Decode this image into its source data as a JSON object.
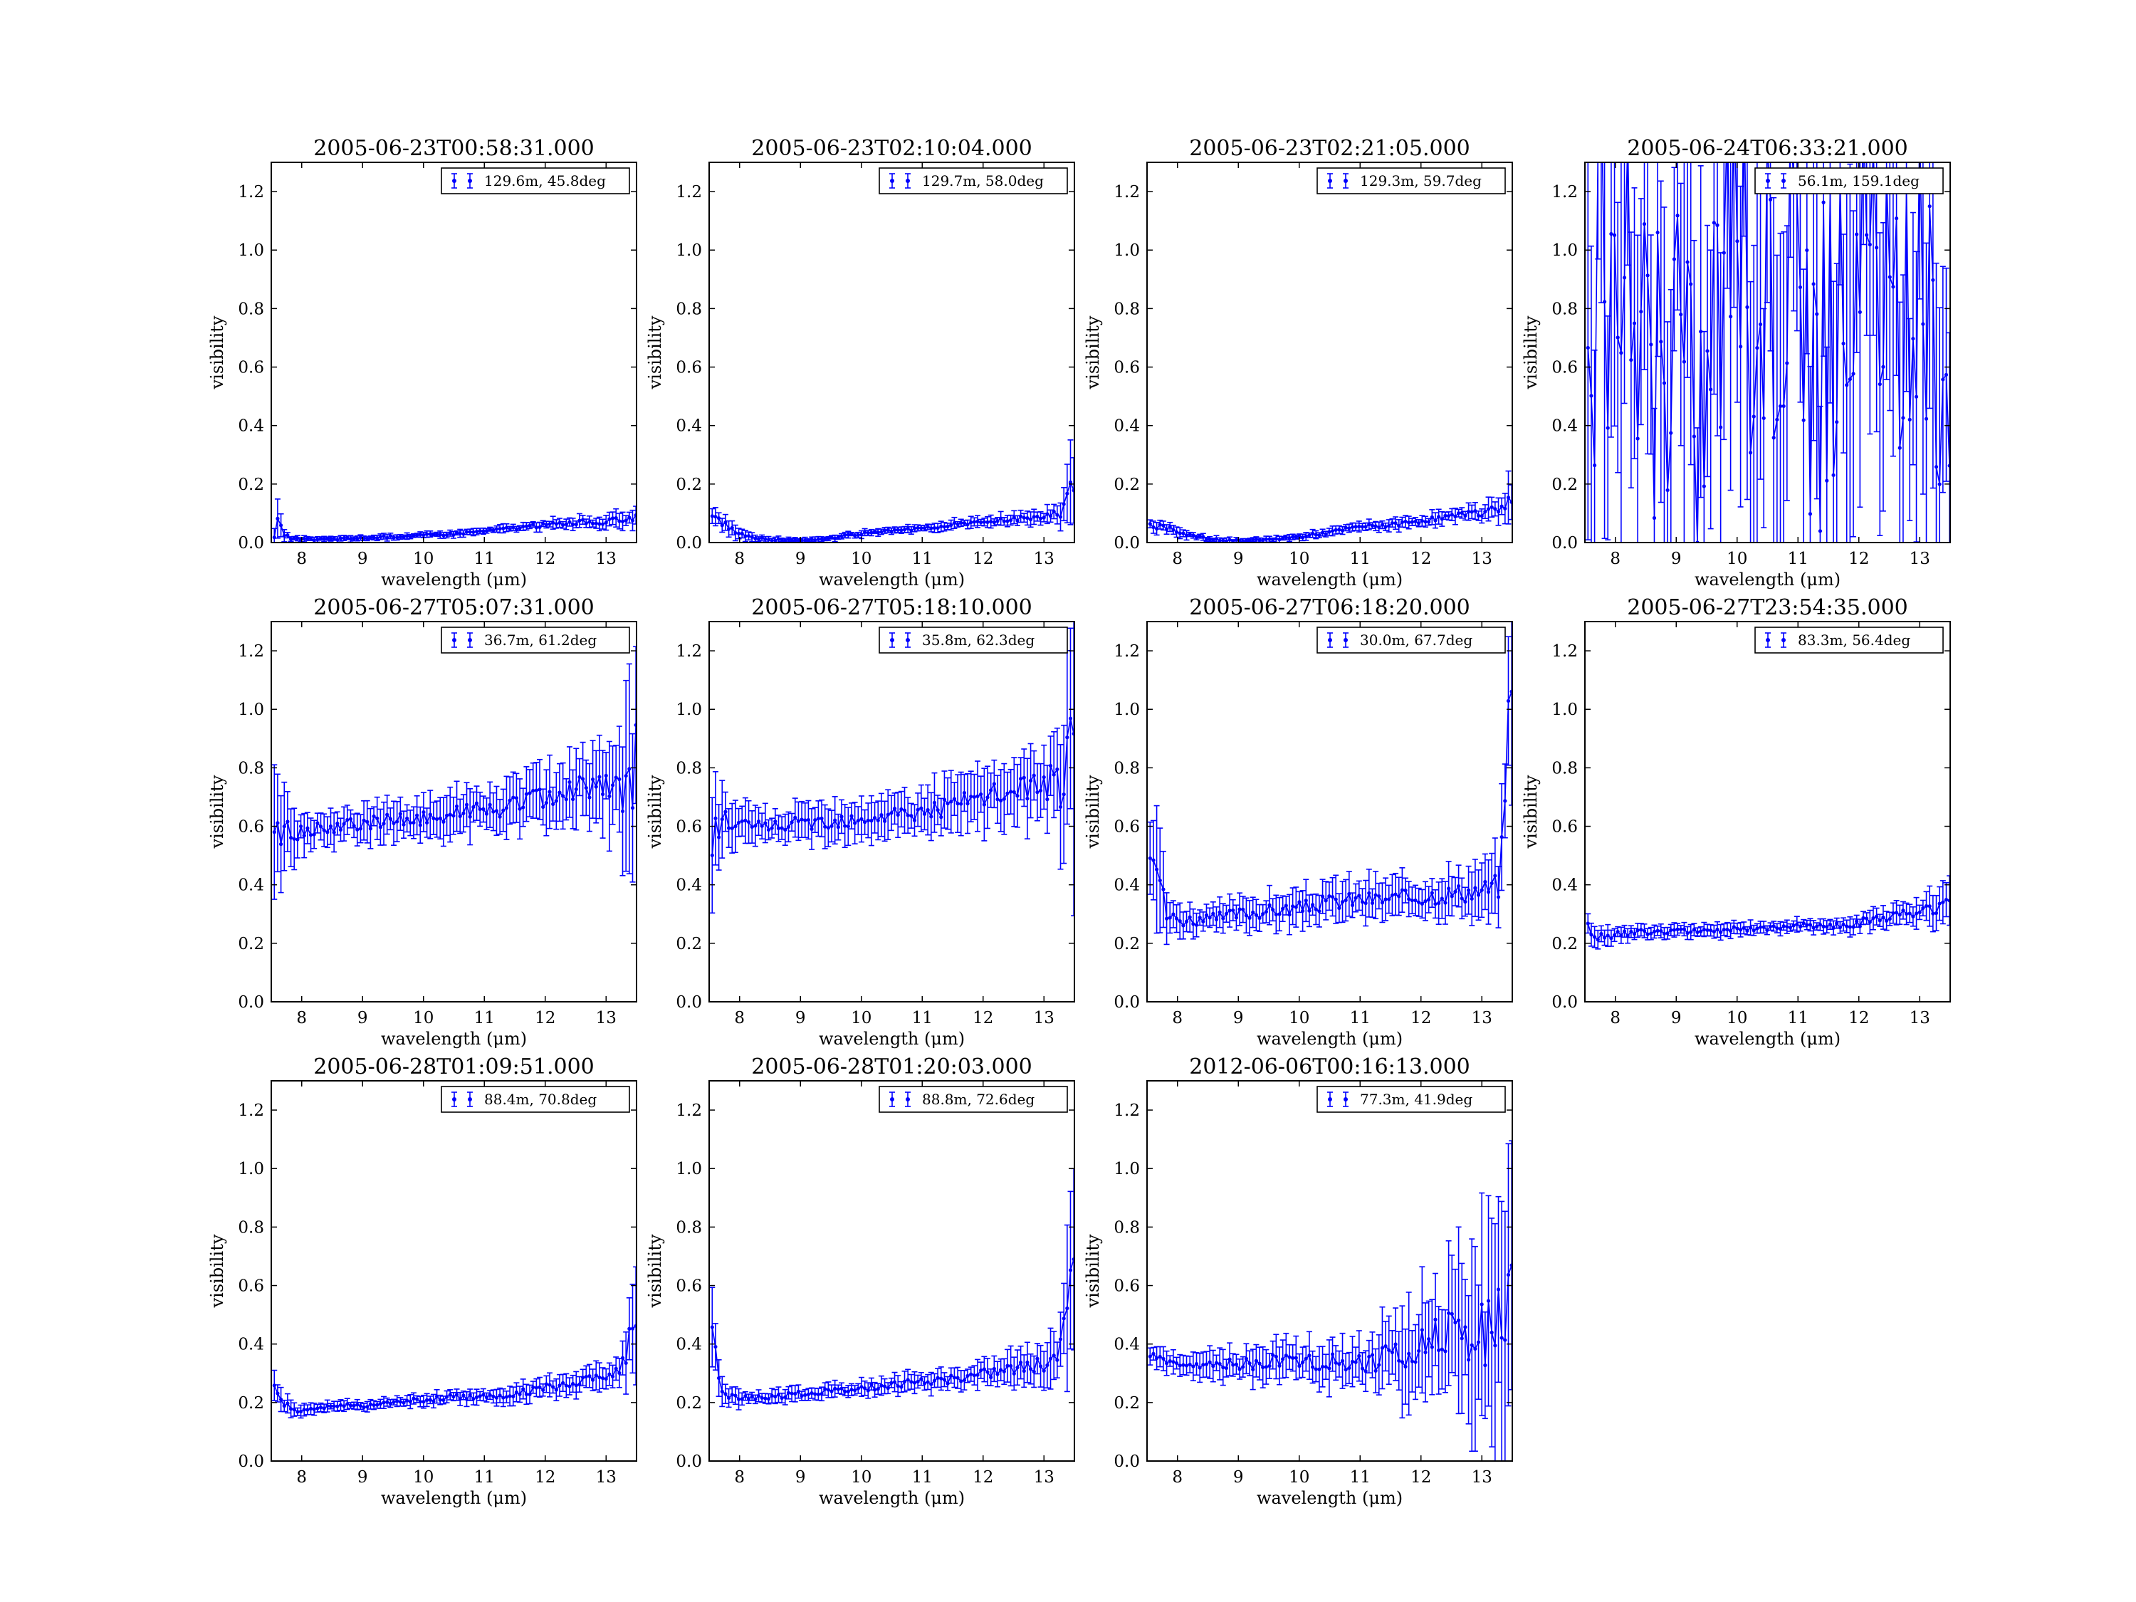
{
  "figure": {
    "panel_count": 11,
    "series_color": "#0000ff"
  },
  "chart_data": [
    {
      "type": "scatter",
      "title": "2005-06-23T00:58:31.000",
      "xlabel": "wavelength (μm)",
      "ylabel": "visibility",
      "xlim": [
        7.5,
        13.5
      ],
      "ylim": [
        0,
        1.3
      ],
      "xticks": [
        8,
        9,
        10,
        11,
        12,
        13
      ],
      "yticks": [
        0.0,
        0.2,
        0.4,
        0.6,
        0.8,
        1.0,
        1.2
      ],
      "legend_position": "top-right",
      "errorbars": true,
      "series": [
        {
          "name": "129.6m, 45.8deg",
          "x": [
            7.55,
            7.6,
            7.65,
            7.7,
            7.8,
            8.0,
            8.5,
            9.0,
            9.5,
            10.0,
            10.5,
            11.0,
            11.5,
            12.0,
            12.5,
            13.0,
            13.3,
            13.5
          ],
          "y": [
            0.03,
            0.07,
            0.05,
            0.03,
            0.015,
            0.01,
            0.012,
            0.015,
            0.02,
            0.025,
            0.03,
            0.04,
            0.05,
            0.06,
            0.07,
            0.07,
            0.08,
            0.09
          ],
          "err": [
            0.03,
            0.06,
            0.04,
            0.02,
            0.01,
            0.008,
            0.008,
            0.008,
            0.008,
            0.008,
            0.01,
            0.01,
            0.012,
            0.015,
            0.018,
            0.02,
            0.025,
            0.03
          ]
        }
      ]
    },
    {
      "type": "scatter",
      "title": "2005-06-23T02:10:04.000",
      "xlabel": "wavelength (μm)",
      "ylabel": "visibility",
      "xlim": [
        7.5,
        13.5
      ],
      "ylim": [
        0,
        1.3
      ],
      "xticks": [
        8,
        9,
        10,
        11,
        12,
        13
      ],
      "yticks": [
        0.0,
        0.2,
        0.4,
        0.6,
        0.8,
        1.0,
        1.2
      ],
      "legend_position": "top-right",
      "errorbars": true,
      "series": [
        {
          "name": "129.7m, 58.0deg",
          "x": [
            7.55,
            7.7,
            7.9,
            8.2,
            8.5,
            9.0,
            9.5,
            10.0,
            10.5,
            11.0,
            11.5,
            12.0,
            12.5,
            13.0,
            13.3,
            13.45
          ],
          "y": [
            0.08,
            0.07,
            0.04,
            0.02,
            0.01,
            0.008,
            0.015,
            0.03,
            0.04,
            0.05,
            0.06,
            0.07,
            0.08,
            0.09,
            0.1,
            0.18
          ],
          "err": [
            0.03,
            0.025,
            0.02,
            0.012,
            0.008,
            0.008,
            0.008,
            0.01,
            0.01,
            0.012,
            0.015,
            0.015,
            0.018,
            0.02,
            0.04,
            0.12
          ]
        }
      ]
    },
    {
      "type": "scatter",
      "title": "2005-06-23T02:21:05.000",
      "xlabel": "wavelength (μm)",
      "ylabel": "visibility",
      "xlim": [
        7.5,
        13.5
      ],
      "ylim": [
        0,
        1.3
      ],
      "xticks": [
        8,
        9,
        10,
        11,
        12,
        13
      ],
      "yticks": [
        0.0,
        0.2,
        0.4,
        0.6,
        0.8,
        1.0,
        1.2
      ],
      "legend_position": "top-right",
      "errorbars": true,
      "series": [
        {
          "name": "129.3m, 59.7deg",
          "x": [
            7.55,
            7.8,
            8.0,
            8.3,
            8.6,
            9.0,
            9.4,
            10.0,
            10.5,
            11.0,
            11.5,
            12.0,
            12.5,
            13.0,
            13.3,
            13.45
          ],
          "y": [
            0.06,
            0.05,
            0.04,
            0.02,
            0.01,
            0.005,
            0.008,
            0.02,
            0.035,
            0.055,
            0.06,
            0.075,
            0.09,
            0.1,
            0.12,
            0.15
          ],
          "err": [
            0.02,
            0.018,
            0.015,
            0.01,
            0.008,
            0.008,
            0.008,
            0.01,
            0.012,
            0.015,
            0.015,
            0.018,
            0.02,
            0.025,
            0.04,
            0.07
          ]
        }
      ]
    },
    {
      "type": "scatter",
      "title": "2005-06-24T06:33:21.000",
      "xlabel": "wavelength (μm)",
      "ylabel": "visibility",
      "xlim": [
        7.5,
        13.5
      ],
      "ylim": [
        0,
        1.3
      ],
      "xticks": [
        8,
        9,
        10,
        11,
        12,
        13
      ],
      "yticks": [
        0.0,
        0.2,
        0.4,
        0.6,
        0.8,
        1.0,
        1.2
      ],
      "legend_position": "top-right",
      "errorbars": true,
      "series": [
        {
          "name": "56.1m, 159.1deg",
          "x": [
            7.6,
            7.8,
            8.0,
            8.2,
            8.5,
            8.8,
            9.0,
            9.3,
            9.6,
            10.0,
            10.3,
            10.6,
            11.0,
            11.3,
            11.6,
            12.0,
            12.3,
            12.6,
            13.0,
            13.3
          ],
          "y": [
            0.6,
            1.2,
            0.4,
            0.9,
            0.7,
            0.5,
            1.0,
            0.3,
            0.8,
            1.3,
            0.6,
            0.9,
            1.1,
            0.5,
            0.8,
            1.0,
            0.9,
            0.6,
            0.9,
            0.7
          ],
          "err": [
            0.5,
            0.6,
            0.5,
            0.6,
            0.5,
            0.6,
            0.5,
            0.6,
            0.5,
            0.6,
            0.5,
            0.6,
            0.5,
            0.6,
            0.5,
            0.6,
            0.5,
            0.6,
            0.5,
            0.6
          ]
        }
      ]
    },
    {
      "type": "scatter",
      "title": "2005-06-27T05:07:31.000",
      "xlabel": "wavelength (μm)",
      "ylabel": "visibility",
      "xlim": [
        7.5,
        13.5
      ],
      "ylim": [
        0,
        1.3
      ],
      "xticks": [
        8,
        9,
        10,
        11,
        12,
        13
      ],
      "yticks": [
        0.0,
        0.2,
        0.4,
        0.6,
        0.8,
        1.0,
        1.2
      ],
      "legend_position": "top-right",
      "errorbars": true,
      "series": [
        {
          "name": "36.7m, 61.2deg",
          "x": [
            7.55,
            7.7,
            8.0,
            8.5,
            9.0,
            9.5,
            10.0,
            10.5,
            11.0,
            11.5,
            12.0,
            12.5,
            13.0,
            13.3,
            13.45
          ],
          "y": [
            0.6,
            0.58,
            0.58,
            0.6,
            0.61,
            0.62,
            0.63,
            0.65,
            0.65,
            0.67,
            0.7,
            0.72,
            0.74,
            0.72,
            0.78
          ],
          "err": [
            0.2,
            0.12,
            0.06,
            0.05,
            0.05,
            0.06,
            0.06,
            0.07,
            0.07,
            0.08,
            0.09,
            0.1,
            0.12,
            0.2,
            0.4
          ]
        }
      ]
    },
    {
      "type": "scatter",
      "title": "2005-06-27T05:18:10.000",
      "xlabel": "wavelength (μm)",
      "ylabel": "visibility",
      "xlim": [
        7.5,
        13.5
      ],
      "ylim": [
        0,
        1.3
      ],
      "xticks": [
        8,
        9,
        10,
        11,
        12,
        13
      ],
      "yticks": [
        0.0,
        0.2,
        0.4,
        0.6,
        0.8,
        1.0,
        1.2
      ],
      "legend_position": "top-right",
      "errorbars": true,
      "series": [
        {
          "name": "35.8m, 62.3deg",
          "x": [
            7.55,
            7.7,
            8.0,
            8.5,
            9.0,
            9.5,
            10.0,
            10.5,
            11.0,
            11.5,
            12.0,
            12.5,
            13.0,
            13.3,
            13.45
          ],
          "y": [
            0.55,
            0.62,
            0.6,
            0.6,
            0.61,
            0.62,
            0.63,
            0.64,
            0.65,
            0.67,
            0.7,
            0.72,
            0.75,
            0.74,
            0.8
          ],
          "err": [
            0.2,
            0.12,
            0.06,
            0.05,
            0.05,
            0.06,
            0.06,
            0.07,
            0.07,
            0.08,
            0.09,
            0.1,
            0.12,
            0.2,
            0.45
          ]
        }
      ]
    },
    {
      "type": "scatter",
      "title": "2005-06-27T06:18:20.000",
      "xlabel": "wavelength (μm)",
      "ylabel": "visibility",
      "xlim": [
        7.5,
        13.5
      ],
      "ylim": [
        0,
        1.3
      ],
      "xticks": [
        8,
        9,
        10,
        11,
        12,
        13
      ],
      "yticks": [
        0.0,
        0.2,
        0.4,
        0.6,
        0.8,
        1.0,
        1.2
      ],
      "legend_position": "top-right",
      "errorbars": true,
      "series": [
        {
          "name": "30.0m, 67.7deg",
          "x": [
            7.6,
            7.7,
            7.8,
            8.0,
            8.5,
            9.0,
            9.5,
            10.0,
            10.5,
            11.0,
            11.5,
            12.0,
            12.5,
            13.0,
            13.3,
            13.45
          ],
          "y": [
            0.55,
            0.45,
            0.3,
            0.28,
            0.28,
            0.3,
            0.31,
            0.32,
            0.34,
            0.35,
            0.35,
            0.36,
            0.37,
            0.38,
            0.4,
            1.03
          ],
          "err": [
            0.15,
            0.2,
            0.08,
            0.05,
            0.04,
            0.05,
            0.05,
            0.05,
            0.06,
            0.06,
            0.06,
            0.07,
            0.07,
            0.08,
            0.1,
            0.3
          ]
        }
      ]
    },
    {
      "type": "scatter",
      "title": "2005-06-27T23:54:35.000",
      "xlabel": "wavelength (μm)",
      "ylabel": "visibility",
      "xlim": [
        7.5,
        13.5
      ],
      "ylim": [
        0,
        1.3
      ],
      "xticks": [
        8,
        9,
        10,
        11,
        12,
        13
      ],
      "yticks": [
        0.0,
        0.2,
        0.4,
        0.6,
        0.8,
        1.0,
        1.2
      ],
      "legend_position": "top-right",
      "errorbars": true,
      "series": [
        {
          "name": "83.3m, 56.4deg",
          "x": [
            7.55,
            7.7,
            8.0,
            8.5,
            9.0,
            9.5,
            10.0,
            10.5,
            11.0,
            11.5,
            12.0,
            12.5,
            13.0,
            13.3,
            13.45
          ],
          "y": [
            0.25,
            0.22,
            0.23,
            0.24,
            0.24,
            0.24,
            0.25,
            0.25,
            0.26,
            0.26,
            0.27,
            0.29,
            0.31,
            0.33,
            0.35
          ],
          "err": [
            0.05,
            0.04,
            0.02,
            0.02,
            0.02,
            0.02,
            0.02,
            0.02,
            0.02,
            0.02,
            0.03,
            0.03,
            0.04,
            0.06,
            0.07
          ]
        }
      ]
    },
    {
      "type": "scatter",
      "title": "2005-06-28T01:09:51.000",
      "xlabel": "wavelength (μm)",
      "ylabel": "visibility",
      "xlim": [
        7.5,
        13.5
      ],
      "ylim": [
        0,
        1.3
      ],
      "xticks": [
        8,
        9,
        10,
        11,
        12,
        13
      ],
      "yticks": [
        0.0,
        0.2,
        0.4,
        0.6,
        0.8,
        1.0,
        1.2
      ],
      "legend_position": "top-right",
      "errorbars": true,
      "series": [
        {
          "name": "88.4m, 70.8deg",
          "x": [
            7.55,
            7.7,
            7.9,
            8.2,
            8.5,
            9.0,
            9.5,
            10.0,
            10.5,
            11.0,
            11.5,
            12.0,
            12.5,
            13.0,
            13.3,
            13.45
          ],
          "y": [
            0.25,
            0.2,
            0.17,
            0.18,
            0.19,
            0.19,
            0.2,
            0.21,
            0.22,
            0.22,
            0.23,
            0.25,
            0.27,
            0.29,
            0.33,
            0.5
          ],
          "err": [
            0.04,
            0.03,
            0.02,
            0.015,
            0.015,
            0.015,
            0.015,
            0.02,
            0.02,
            0.02,
            0.025,
            0.03,
            0.035,
            0.04,
            0.06,
            0.18
          ]
        }
      ]
    },
    {
      "type": "scatter",
      "title": "2005-06-28T01:20:03.000",
      "xlabel": "wavelength (μm)",
      "ylabel": "visibility",
      "xlim": [
        7.5,
        13.5
      ],
      "ylim": [
        0,
        1.3
      ],
      "xticks": [
        8,
        9,
        10,
        11,
        12,
        13
      ],
      "yticks": [
        0.0,
        0.2,
        0.4,
        0.6,
        0.8,
        1.0,
        1.2
      ],
      "legend_position": "top-right",
      "errorbars": true,
      "series": [
        {
          "name": "88.8m, 72.6deg",
          "x": [
            7.55,
            7.62,
            7.7,
            7.9,
            8.2,
            8.5,
            9.0,
            9.5,
            10.0,
            10.5,
            11.0,
            11.5,
            12.0,
            12.5,
            13.0,
            13.3,
            13.45
          ],
          "y": [
            0.45,
            0.35,
            0.22,
            0.22,
            0.22,
            0.22,
            0.23,
            0.24,
            0.25,
            0.26,
            0.27,
            0.28,
            0.3,
            0.32,
            0.33,
            0.38,
            0.8
          ],
          "err": [
            0.12,
            0.1,
            0.04,
            0.03,
            0.02,
            0.02,
            0.02,
            0.02,
            0.025,
            0.025,
            0.03,
            0.035,
            0.04,
            0.05,
            0.06,
            0.1,
            0.3
          ]
        }
      ]
    },
    {
      "type": "scatter",
      "title": "2012-06-06T00:16:13.000",
      "xlabel": "wavelength (μm)",
      "ylabel": "visibility",
      "xlim": [
        7.5,
        13.5
      ],
      "ylim": [
        0,
        1.3
      ],
      "xticks": [
        8,
        9,
        10,
        11,
        12,
        13
      ],
      "yticks": [
        0.0,
        0.2,
        0.4,
        0.6,
        0.8,
        1.0,
        1.2
      ],
      "legend_position": "top-right",
      "errorbars": true,
      "series": [
        {
          "name": "77.3m, 41.9deg",
          "x": [
            7.55,
            7.8,
            8.0,
            8.5,
            9.0,
            9.5,
            10.0,
            10.5,
            11.0,
            11.2,
            11.5,
            12.0,
            12.5,
            13.0,
            13.3,
            13.45
          ],
          "y": [
            0.36,
            0.34,
            0.32,
            0.32,
            0.33,
            0.34,
            0.34,
            0.34,
            0.33,
            0.33,
            0.36,
            0.4,
            0.42,
            0.42,
            0.45,
            0.5
          ],
          "err": [
            0.03,
            0.03,
            0.03,
            0.04,
            0.05,
            0.06,
            0.06,
            0.07,
            0.07,
            0.08,
            0.12,
            0.18,
            0.22,
            0.28,
            0.35,
            0.45
          ]
        }
      ]
    }
  ]
}
